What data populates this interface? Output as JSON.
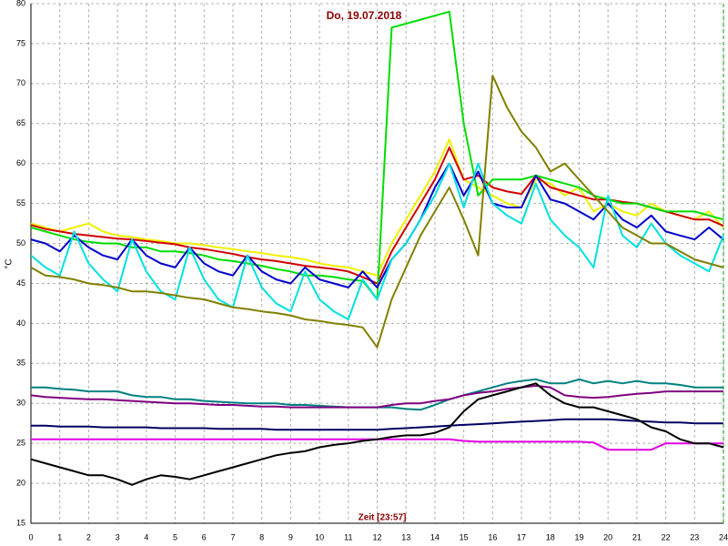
{
  "chart_data": {
    "type": "line",
    "title": "Do, 19.07.2018",
    "y_label": "°C",
    "x_label": "Zeit [23:57]",
    "xlim": [
      0,
      24
    ],
    "xticks": [
      0,
      1,
      2,
      3,
      4,
      5,
      6,
      7,
      8,
      9,
      10,
      11,
      12,
      13,
      14,
      15,
      16,
      17,
      18,
      19,
      20,
      21,
      22,
      23,
      24
    ],
    "ylim": [
      15,
      80
    ],
    "yticks": [
      15,
      20,
      25,
      30,
      35,
      40,
      45,
      50,
      55,
      60,
      65,
      70,
      75,
      80
    ],
    "grid": true,
    "x": [
      0,
      0.5,
      1,
      1.5,
      2,
      2.5,
      3,
      3.5,
      4,
      4.5,
      5,
      5.5,
      6,
      6.5,
      7,
      7.5,
      8,
      8.5,
      9,
      9.5,
      10,
      10.5,
      11,
      11.5,
      12,
      12.5,
      13,
      13.5,
      14,
      14.5,
      15,
      15.5,
      16,
      16.5,
      17,
      17.5,
      18,
      18.5,
      19,
      19.5,
      20,
      20.5,
      21,
      21.5,
      22,
      22.5,
      23,
      23.5,
      24
    ],
    "series": [
      {
        "color": "#f0f000",
        "values": [
          52.5,
          52,
          51.5,
          52,
          52.5,
          51.5,
          51,
          50.8,
          50.5,
          50.3,
          50,
          50,
          49.8,
          49.5,
          49.3,
          49,
          48.8,
          48.5,
          48.3,
          48,
          47.5,
          47.2,
          47,
          46.5,
          46,
          50,
          53,
          56,
          59,
          63,
          58,
          57,
          56,
          55,
          54.5,
          58,
          57.5,
          56,
          57,
          54,
          55,
          54,
          53.5,
          55,
          54,
          53.5,
          53,
          54,
          52
        ]
      },
      {
        "color": "#d00000",
        "values": [
          52.3,
          51.8,
          51.5,
          51.2,
          51,
          50.8,
          50.6,
          50.5,
          50.3,
          50.1,
          49.9,
          49.5,
          49.3,
          49,
          48.7,
          48.3,
          48,
          47.8,
          47.5,
          47.2,
          47,
          46.8,
          46.5,
          45.8,
          45,
          49,
          52,
          55,
          58,
          62,
          58,
          58.5,
          57,
          56.5,
          56.2,
          58.5,
          57,
          56.5,
          56,
          55.5,
          55.5,
          55.2,
          55,
          54.5,
          54,
          53.5,
          53,
          53,
          52.2
        ]
      },
      {
        "color": "#00dd00",
        "values": [
          52,
          51.5,
          51,
          50.5,
          50.2,
          50,
          50,
          49.5,
          49.5,
          49,
          49,
          48.8,
          48.5,
          48,
          47.8,
          47.5,
          47.2,
          46.8,
          46.5,
          46,
          46,
          45.8,
          45.5,
          45.3,
          43,
          77,
          77.5,
          78,
          78.5,
          79,
          65,
          56,
          58,
          58,
          58,
          58.5,
          58,
          57.5,
          57,
          56,
          55.5,
          55,
          55,
          54.5,
          54,
          54,
          54,
          53.5,
          53
        ]
      },
      {
        "color": "#0000cc",
        "values": [
          50.5,
          50,
          49,
          51,
          49.5,
          48.5,
          48,
          50.5,
          48.5,
          47.5,
          47,
          49.5,
          47.5,
          46.5,
          46,
          48.5,
          46.5,
          45.5,
          45,
          47,
          45.5,
          45,
          44.5,
          46.5,
          44.5,
          48,
          50,
          53,
          57,
          60,
          56,
          59,
          55,
          54.5,
          54.5,
          58.5,
          55.5,
          55,
          54,
          53,
          55,
          53,
          52,
          53.5,
          51.5,
          51,
          50.5,
          52,
          50.5
        ]
      },
      {
        "color": "#00e0e0",
        "values": [
          48.5,
          47,
          46,
          51.5,
          47.5,
          45.5,
          44,
          50.5,
          46.5,
          44,
          43,
          49.5,
          45.5,
          43,
          42,
          48.5,
          44.5,
          42.5,
          41.5,
          46.5,
          43,
          41.5,
          40.5,
          45.5,
          43,
          48,
          50,
          53,
          56,
          60,
          54.5,
          60,
          55,
          53.5,
          52.5,
          57.5,
          53,
          51,
          49.5,
          47,
          56,
          51,
          49.5,
          52.5,
          50,
          48.5,
          47.5,
          46.5,
          51
        ]
      },
      {
        "color": "#808000",
        "values": [
          47,
          46,
          45.8,
          45.5,
          45,
          44.8,
          44.5,
          44,
          44,
          43.8,
          43.5,
          43.2,
          43,
          42.5,
          42,
          41.8,
          41.5,
          41.3,
          41,
          40.5,
          40.3,
          40,
          39.8,
          39.5,
          37,
          43,
          47,
          51,
          54,
          57,
          53,
          48.5,
          71,
          67,
          64,
          62,
          59,
          60,
          58,
          56,
          54,
          52,
          51,
          50,
          50,
          49,
          48,
          47.5,
          47
        ]
      },
      {
        "color": "#008080",
        "values": [
          32,
          32,
          31.8,
          31.7,
          31.5,
          31.5,
          31.5,
          31,
          30.8,
          30.8,
          30.5,
          30.5,
          30.3,
          30.2,
          30.1,
          30,
          30,
          30,
          29.8,
          29.8,
          29.7,
          29.6,
          29.5,
          29.5,
          29.5,
          29.5,
          29.3,
          29.2,
          29.8,
          30.5,
          31,
          31.5,
          32,
          32.5,
          32.8,
          33,
          32.5,
          32.5,
          33,
          32.5,
          32.8,
          32.5,
          32.8,
          32.5,
          32.5,
          32.3,
          32,
          32,
          32
        ]
      },
      {
        "color": "#800080",
        "values": [
          31,
          30.8,
          30.7,
          30.6,
          30.5,
          30.5,
          30.4,
          30.3,
          30.2,
          30.1,
          30,
          30,
          29.9,
          29.8,
          29.8,
          29.7,
          29.6,
          29.6,
          29.5,
          29.5,
          29.5,
          29.5,
          29.5,
          29.5,
          29.5,
          29.8,
          30,
          30,
          30.3,
          30.5,
          31,
          31.3,
          31.5,
          31.8,
          32,
          32.2,
          32,
          31,
          30.8,
          30.7,
          30.8,
          31,
          31.2,
          31.3,
          31.5,
          31.5,
          31.5,
          31.5,
          31.5
        ]
      },
      {
        "color": "#000060",
        "values": [
          27.2,
          27.2,
          27.1,
          27.1,
          27.1,
          27,
          27,
          27,
          27,
          26.9,
          26.9,
          26.9,
          26.9,
          26.8,
          26.8,
          26.8,
          26.8,
          26.7,
          26.7,
          26.7,
          26.7,
          26.7,
          26.7,
          26.7,
          26.7,
          26.8,
          26.9,
          27,
          27.1,
          27.2,
          27.3,
          27.4,
          27.5,
          27.6,
          27.7,
          27.8,
          27.9,
          28,
          28,
          28,
          28,
          27.9,
          27.8,
          27.7,
          27.6,
          27.6,
          27.5,
          27.5,
          27.5
        ]
      },
      {
        "color": "#e000e0",
        "values": [
          25.5,
          25.5,
          25.5,
          25.5,
          25.5,
          25.5,
          25.5,
          25.5,
          25.5,
          25.5,
          25.5,
          25.5,
          25.5,
          25.5,
          25.5,
          25.5,
          25.5,
          25.5,
          25.5,
          25.5,
          25.5,
          25.5,
          25.5,
          25.5,
          25.5,
          25.5,
          25.5,
          25.5,
          25.5,
          25.5,
          25.3,
          25.2,
          25.2,
          25.2,
          25.2,
          25.2,
          25.2,
          25.2,
          25.2,
          25.1,
          24.2,
          24.2,
          24.2,
          24.2,
          25,
          25,
          25,
          25,
          25
        ]
      },
      {
        "color": "#000000",
        "values": [
          23,
          22.5,
          22,
          21.5,
          21,
          21,
          20.5,
          19.8,
          20.5,
          21,
          20.8,
          20.5,
          21,
          21.5,
          22,
          22.5,
          23,
          23.5,
          23.8,
          24,
          24.5,
          24.8,
          25,
          25.3,
          25.5,
          25.8,
          26,
          26,
          26.3,
          27,
          29,
          30.5,
          31,
          31.5,
          32,
          32.5,
          31,
          30,
          29.5,
          29.5,
          29,
          28.5,
          28,
          27,
          26.5,
          25.5,
          25,
          25,
          24.5
        ]
      }
    ]
  }
}
